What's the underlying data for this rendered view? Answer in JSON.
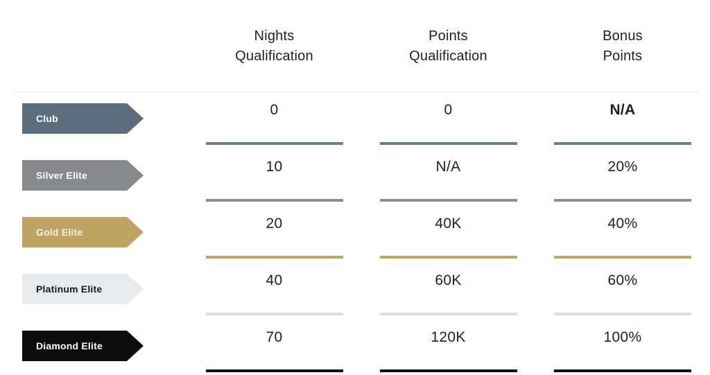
{
  "table": {
    "columns": {
      "nights": {
        "line1": "Nights",
        "line2": "Qualification"
      },
      "points": {
        "line1": "Points",
        "line2": "Qualification"
      },
      "bonus": {
        "line1": "Bonus",
        "line2": "Points"
      }
    },
    "divider_color": "#eeeeee",
    "tiers": [
      {
        "name": "Club",
        "badge_bg": "#5a6e7d",
        "badge_text_color": "#ffffff",
        "rule_color": "#6b7f8e",
        "nights": "0",
        "points": "0",
        "bonus": "N/A",
        "bonus_weight": "700"
      },
      {
        "name": "Silver Elite",
        "badge_bg": "#87898c",
        "badge_text_color": "#ffffff",
        "rule_color": "#8d8f92",
        "nights": "10",
        "points": "N/A",
        "bonus": "20%",
        "bonus_weight": "400"
      },
      {
        "name": "Gold Elite",
        "badge_bg": "#bfa363",
        "badge_text_color": "#f5f1e6",
        "rule_color": "#c1a65f",
        "nights": "20",
        "points": "40K",
        "bonus": "40%",
        "bonus_weight": "400"
      },
      {
        "name": "Platinum Elite",
        "badge_bg": "#e8eaed",
        "badge_text_color": "#17191c",
        "rule_color": "#dcdee0",
        "nights": "40",
        "points": "60K",
        "bonus": "60%",
        "bonus_weight": "400"
      },
      {
        "name": "Diamond Elite",
        "badge_bg": "#0c0c0c",
        "badge_text_color": "#ffffff",
        "rule_color": "#101010",
        "nights": "70",
        "points": "120K",
        "bonus": "100%",
        "bonus_weight": "400"
      }
    ]
  }
}
